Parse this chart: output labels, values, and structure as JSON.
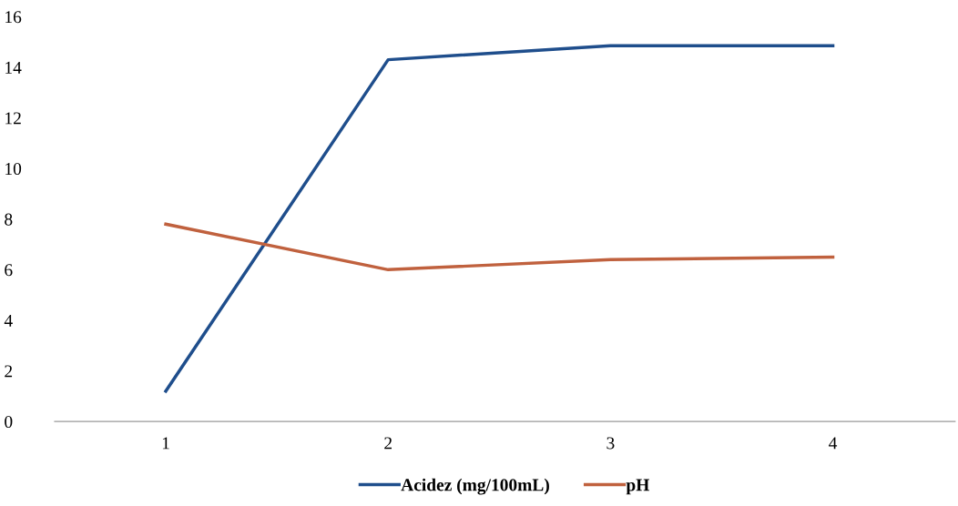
{
  "chart_data": {
    "type": "line",
    "categories": [
      "1",
      "2",
      "3",
      "4"
    ],
    "series": [
      {
        "name": "Acidez (mg/100mL)",
        "color": "#1f4e8c",
        "values": [
          1.2,
          14.3,
          14.85,
          14.85
        ]
      },
      {
        "name": "pH",
        "color": "#c0613e",
        "values": [
          7.8,
          6.0,
          6.4,
          6.5
        ]
      }
    ],
    "ylim": [
      0,
      16
    ],
    "yticks": [
      0,
      2,
      4,
      6,
      8,
      10,
      12,
      14,
      16
    ],
    "grid": false,
    "legend": "bottom",
    "marker": "none",
    "line_style": "solid"
  }
}
